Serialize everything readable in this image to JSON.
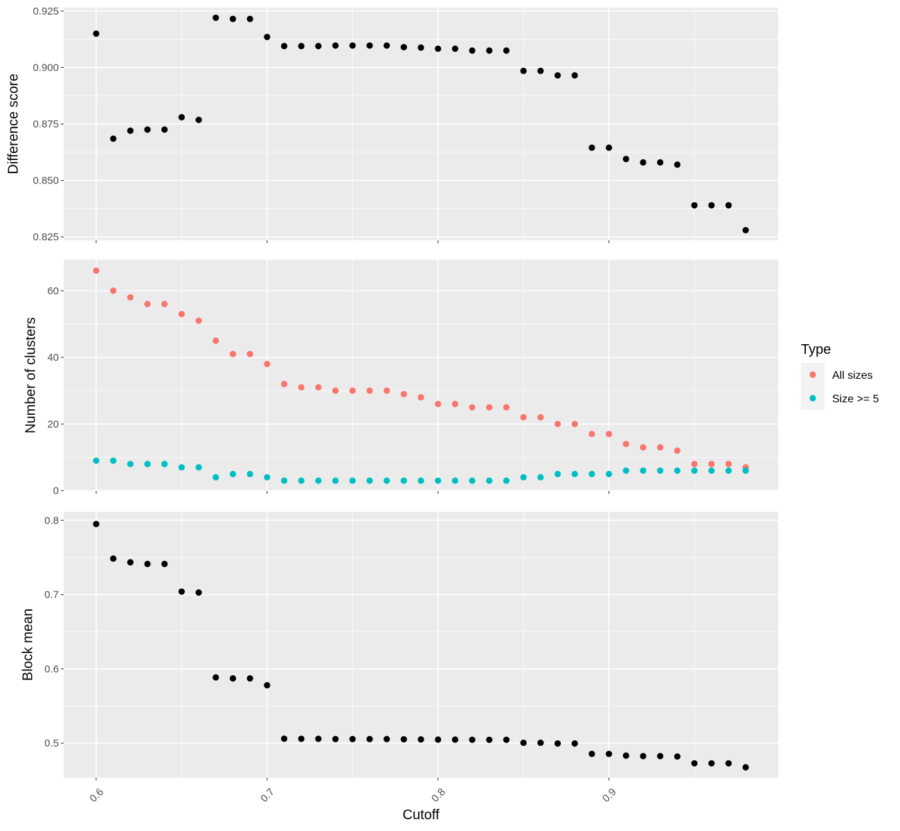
{
  "chart_data": [
    {
      "type": "scatter",
      "ylabel": "Difference score",
      "ylim": [
        0.8235,
        0.9265
      ],
      "yticks": [
        0.825,
        0.85,
        0.875,
        0.9,
        0.925
      ],
      "ytick_labels": [
        "0.825",
        "0.850",
        "0.875",
        "0.900",
        "0.925"
      ],
      "grid": true,
      "series": [
        {
          "color": "#000000",
          "x": [
            0.6,
            0.61,
            0.62,
            0.63,
            0.64,
            0.65,
            0.66,
            0.67,
            0.68,
            0.69,
            0.7,
            0.71,
            0.72,
            0.73,
            0.74,
            0.75,
            0.76,
            0.77,
            0.78,
            0.79,
            0.8,
            0.81,
            0.82,
            0.83,
            0.84,
            0.85,
            0.86,
            0.87,
            0.88,
            0.89,
            0.9,
            0.91,
            0.92,
            0.93,
            0.94,
            0.95,
            0.96,
            0.97,
            0.98
          ],
          "y": [
            0.915,
            0.8685,
            0.872,
            0.8725,
            0.8725,
            0.878,
            0.8768,
            0.922,
            0.9215,
            0.9215,
            0.9135,
            0.9095,
            0.9095,
            0.9095,
            0.9097,
            0.9097,
            0.9097,
            0.9097,
            0.909,
            0.9088,
            0.9083,
            0.9083,
            0.9075,
            0.9075,
            0.9075,
            0.8985,
            0.8985,
            0.8965,
            0.8965,
            0.8645,
            0.8645,
            0.8595,
            0.858,
            0.858,
            0.857,
            0.839,
            0.839,
            0.839,
            0.828
          ]
        }
      ]
    },
    {
      "type": "scatter",
      "ylabel": "Number of clusters",
      "ylim": [
        -0.1,
        69.3
      ],
      "yticks": [
        0,
        20,
        40,
        60
      ],
      "ytick_labels": [
        "0",
        "20",
        "40",
        "60"
      ],
      "grid": true,
      "legend": {
        "title": "Type",
        "placement": "right",
        "entries": [
          {
            "label": "All sizes",
            "color": "#F8766D"
          },
          {
            "label": "Size >= 5",
            "color": "#00BFC4"
          }
        ]
      },
      "series": [
        {
          "name": "All sizes",
          "color": "#F8766D",
          "x": [
            0.6,
            0.61,
            0.62,
            0.63,
            0.64,
            0.65,
            0.66,
            0.67,
            0.68,
            0.69,
            0.7,
            0.71,
            0.72,
            0.73,
            0.74,
            0.75,
            0.76,
            0.77,
            0.78,
            0.79,
            0.8,
            0.81,
            0.82,
            0.83,
            0.84,
            0.85,
            0.86,
            0.87,
            0.88,
            0.89,
            0.9,
            0.91,
            0.92,
            0.93,
            0.94,
            0.95,
            0.96,
            0.97,
            0.98
          ],
          "y": [
            66,
            60,
            58,
            56,
            56,
            53,
            51,
            45,
            41,
            41,
            38,
            32,
            31,
            31,
            30,
            30,
            30,
            30,
            29,
            28,
            26,
            26,
            25,
            25,
            25,
            22,
            22,
            20,
            20,
            17,
            17,
            14,
            13,
            13,
            12,
            8,
            8,
            8,
            7
          ]
        },
        {
          "name": "Size >= 5",
          "color": "#00BFC4",
          "x": [
            0.6,
            0.61,
            0.62,
            0.63,
            0.64,
            0.65,
            0.66,
            0.67,
            0.68,
            0.69,
            0.7,
            0.71,
            0.72,
            0.73,
            0.74,
            0.75,
            0.76,
            0.77,
            0.78,
            0.79,
            0.8,
            0.81,
            0.82,
            0.83,
            0.84,
            0.85,
            0.86,
            0.87,
            0.88,
            0.89,
            0.9,
            0.91,
            0.92,
            0.93,
            0.94,
            0.95,
            0.96,
            0.97,
            0.98
          ],
          "y": [
            9,
            9,
            8,
            8,
            8,
            7,
            7,
            4,
            5,
            5,
            4,
            3,
            3,
            3,
            3,
            3,
            3,
            3,
            3,
            3,
            3,
            3,
            3,
            3,
            3,
            4,
            4,
            5,
            5,
            5,
            5,
            6,
            6,
            6,
            6,
            6,
            6,
            6,
            6
          ]
        }
      ]
    },
    {
      "type": "scatter",
      "xlabel": "Cutoff",
      "ylabel": "Block mean",
      "xlim": [
        0.581,
        0.999
      ],
      "xticks": [
        0.6,
        0.7,
        0.8,
        0.9
      ],
      "xtick_labels": [
        "0.6",
        "0.7",
        "0.8",
        "0.9"
      ],
      "ylim": [
        0.4535,
        0.8115
      ],
      "yticks": [
        0.5,
        0.6,
        0.7,
        0.8
      ],
      "ytick_labels": [
        "0.5",
        "0.6",
        "0.7",
        "0.8"
      ],
      "grid": true,
      "series": [
        {
          "color": "#000000",
          "x": [
            0.6,
            0.61,
            0.62,
            0.63,
            0.64,
            0.65,
            0.66,
            0.67,
            0.68,
            0.69,
            0.7,
            0.71,
            0.72,
            0.73,
            0.74,
            0.75,
            0.76,
            0.77,
            0.78,
            0.79,
            0.8,
            0.81,
            0.82,
            0.83,
            0.84,
            0.85,
            0.86,
            0.87,
            0.88,
            0.89,
            0.9,
            0.91,
            0.92,
            0.93,
            0.94,
            0.95,
            0.96,
            0.97,
            0.98
          ],
          "y": [
            0.795,
            0.7485,
            0.7435,
            0.7412,
            0.7412,
            0.704,
            0.7028,
            0.5885,
            0.5872,
            0.5872,
            0.578,
            0.506,
            0.5058,
            0.5058,
            0.5055,
            0.5055,
            0.5055,
            0.5055,
            0.5052,
            0.505,
            0.5048,
            0.5048,
            0.5045,
            0.5045,
            0.5045,
            0.5005,
            0.5005,
            0.4995,
            0.4995,
            0.4855,
            0.4855,
            0.4832,
            0.4825,
            0.4825,
            0.482,
            0.4728,
            0.4728,
            0.4728,
            0.4675
          ]
        }
      ]
    }
  ]
}
